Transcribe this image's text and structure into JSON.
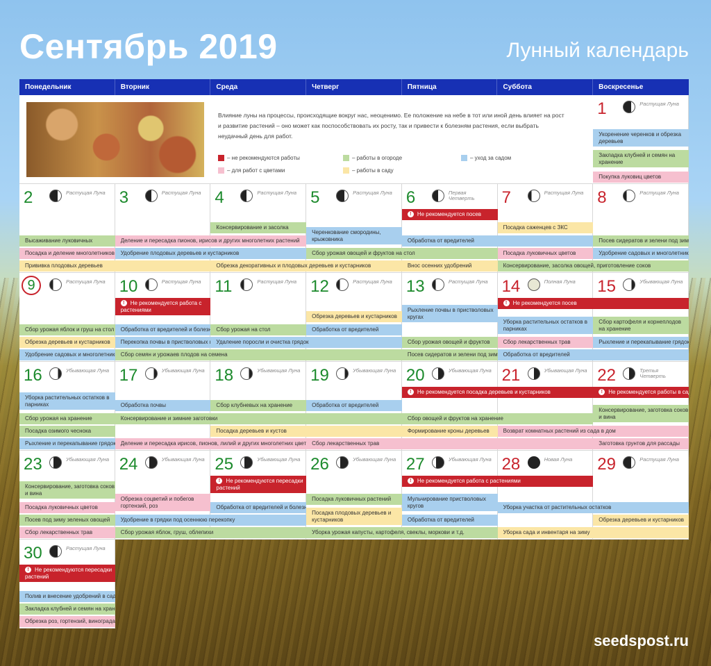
{
  "header": {
    "title": "Сентябрь 2019",
    "subtitle": "Лунный календарь",
    "site": "seedspost.ru"
  },
  "weekdays": [
    "Понедельник",
    "Вторник",
    "Среда",
    "Четверг",
    "Пятница",
    "Суббота",
    "Воскресенье"
  ],
  "intro": {
    "text": "Влияние луны на процессы, происходящие вокруг нас, неоценимо. Ее положение на небе в тот или иной день влияет на рост и развитие растений – оно может как поспособствовать их росту, так и привести к болезням растения, если выбрать неудачный день для работ.",
    "legend": [
      {
        "label": "– не рекомендуются работы",
        "color": "#c8232c"
      },
      {
        "label": "– работы в огороде",
        "color": "#bcdba0"
      },
      {
        "label": "– уход за садом",
        "color": "#a8cfee"
      },
      {
        "label": "– для работ с цветами",
        "color": "#f6c0cf"
      },
      {
        "label": "– работы в саду",
        "color": "#fbe6a6"
      }
    ]
  },
  "colors": {
    "header": "#1730b4",
    "red": "#c8232c",
    "green": "#bcdba0",
    "blue": "#a8cfee",
    "yellow": "#fbe6a6",
    "pink": "#f6c0cf"
  },
  "days": [
    {
      "n": "1",
      "phase": "Растущая Луна",
      "moon": "waxc",
      "red": true,
      "row": 0,
      "col": 6
    },
    {
      "n": "2",
      "phase": "Растущая Луна",
      "moon": "waxc",
      "row": 1,
      "col": 0
    },
    {
      "n": "3",
      "phase": "Растущая Луна",
      "moon": "fq",
      "row": 1,
      "col": 1
    },
    {
      "n": "4",
      "phase": "Растущая Луна",
      "moon": "fq",
      "row": 1,
      "col": 2
    },
    {
      "n": "5",
      "phase": "Растущая Луна",
      "moon": "waxc",
      "row": 1,
      "col": 3
    },
    {
      "n": "6",
      "phase": "Первая Четверть",
      "moon": "fq",
      "row": 1,
      "col": 4
    },
    {
      "n": "7",
      "phase": "Растущая Луна",
      "moon": "waxg",
      "red": true,
      "row": 1,
      "col": 5
    },
    {
      "n": "8",
      "phase": "Растущая Луна",
      "moon": "waxg",
      "red": true,
      "row": 1,
      "col": 6
    },
    {
      "n": "9",
      "phase": "Растущая Луна",
      "moon": "waxg",
      "circ": true,
      "row": 2,
      "col": 0
    },
    {
      "n": "10",
      "phase": "Растущая Луна",
      "moon": "waxg",
      "row": 2,
      "col": 1
    },
    {
      "n": "11",
      "phase": "Растущая Луна",
      "moon": "waxg",
      "row": 2,
      "col": 2
    },
    {
      "n": "12",
      "phase": "Растущая Луна",
      "moon": "waxg",
      "row": 2,
      "col": 3
    },
    {
      "n": "13",
      "phase": "Растущая Луна",
      "moon": "waxg",
      "row": 2,
      "col": 4
    },
    {
      "n": "14",
      "phase": "Полная Луна",
      "moon": "full",
      "red": true,
      "row": 2,
      "col": 5
    },
    {
      "n": "15",
      "phase": "Убывающая Луна",
      "moon": "wang",
      "red": true,
      "row": 2,
      "col": 6
    },
    {
      "n": "16",
      "phase": "Убывающая Луна",
      "moon": "wang",
      "row": 3,
      "col": 0
    },
    {
      "n": "17",
      "phase": "Убывающая Луна",
      "moon": "wang",
      "row": 3,
      "col": 1
    },
    {
      "n": "18",
      "phase": "Убывающая Луна",
      "moon": "wang",
      "row": 3,
      "col": 2
    },
    {
      "n": "19",
      "phase": "Убывающая Луна",
      "moon": "wang",
      "row": 3,
      "col": 3
    },
    {
      "n": "20",
      "phase": "Убывающая Луна",
      "moon": "lq",
      "row": 3,
      "col": 4
    },
    {
      "n": "21",
      "phase": "Убывающая Луна",
      "moon": "lq",
      "red": true,
      "row": 3,
      "col": 5
    },
    {
      "n": "22",
      "phase": "Третья Четверть",
      "moon": "lq",
      "red": true,
      "row": 3,
      "col": 6
    },
    {
      "n": "23",
      "phase": "Убывающая Луна",
      "moon": "wanc",
      "row": 4,
      "col": 0
    },
    {
      "n": "24",
      "phase": "Убывающая Луна",
      "moon": "wanc",
      "row": 4,
      "col": 1
    },
    {
      "n": "25",
      "phase": "Убывающая Луна",
      "moon": "wanc",
      "row": 4,
      "col": 2
    },
    {
      "n": "26",
      "phase": "Убывающая Луна",
      "moon": "wanc",
      "row": 4,
      "col": 3
    },
    {
      "n": "27",
      "phase": "Убывающая Луна",
      "moon": "wanc",
      "row": 4,
      "col": 4
    },
    {
      "n": "28",
      "phase": "Новая Луна",
      "moon": "new",
      "red": true,
      "row": 4,
      "col": 5
    },
    {
      "n": "29",
      "phase": "Растущая Луна",
      "moon": "waxc",
      "red": true,
      "row": 4,
      "col": 6
    },
    {
      "n": "30",
      "phase": "Растущая Луна",
      "moon": "waxc",
      "row": 5,
      "col": 0
    }
  ],
  "bars": [
    {
      "t": "Укоренение черенков и обрезка деревьев",
      "c": "blue",
      "r": 0,
      "s": 6,
      "w": 1,
      "y": 49,
      "tall": true
    },
    {
      "t": "Закладка клубней и семян на хранение",
      "c": "green",
      "r": 0,
      "s": 6,
      "w": 1,
      "y": 79,
      "tall": true
    },
    {
      "t": "Покупка луковиц цветов",
      "c": "pink",
      "r": 0,
      "s": 6,
      "w": 1,
      "y": 110
    },
    {
      "t": "Не рекомендуется посев",
      "c": "red",
      "r": 1,
      "s": 4,
      "w": 1,
      "y": 36
    },
    {
      "t": "Консервирование и засолка",
      "c": "green",
      "r": 1,
      "s": 2,
      "w": 1,
      "y": 55
    },
    {
      "t": "Посадка саженцев с ЗКС",
      "c": "yellow",
      "r": 1,
      "s": 5,
      "w": 1,
      "y": 55
    },
    {
      "t": "Черенкование смородины, крыжовника",
      "c": "blue",
      "r": 1,
      "s": 3,
      "w": 1,
      "y": 62,
      "tall": true
    },
    {
      "t": "Высаживание луковичных",
      "c": "green",
      "r": 1,
      "s": 0,
      "w": 1,
      "y": 74
    },
    {
      "t": "Деление и пересадка пионов, ирисов и других многолетних растений",
      "c": "pink",
      "r": 1,
      "s": 1,
      "w": 2,
      "y": 74
    },
    {
      "t": "Обработка от вредителей",
      "c": "blue",
      "r": 1,
      "s": 4,
      "w": 2,
      "y": 74
    },
    {
      "t": "Посев сидератов и зелени под зиму",
      "c": "green",
      "r": 1,
      "s": 6,
      "w": 1,
      "y": 74
    },
    {
      "t": "Посадка и деление многолетников",
      "c": "pink",
      "r": 1,
      "s": 0,
      "w": 1,
      "y": 92
    },
    {
      "t": "Удобрение плодовых деревьев и кустарников",
      "c": "blue",
      "r": 1,
      "s": 1,
      "w": 2,
      "y": 92
    },
    {
      "t": "Сбор урожая овощей и фруктов на стол",
      "c": "green",
      "r": 1,
      "s": 3,
      "w": 2,
      "y": 92
    },
    {
      "t": "Посадка луковичных цветов",
      "c": "pink",
      "r": 1,
      "s": 5,
      "w": 1,
      "y": 92
    },
    {
      "t": "Удобрение садовых и многолетников",
      "c": "blue",
      "r": 1,
      "s": 6,
      "w": 1,
      "y": 92
    },
    {
      "t": "Прививка плодовых деревьев",
      "c": "yellow",
      "r": 1,
      "s": 0,
      "w": 2,
      "y": 110
    },
    {
      "t": "Обрезка декоративных и плодовых деревьев и кустарников",
      "c": "yellow",
      "r": 1,
      "s": 2,
      "w": 2,
      "y": 110
    },
    {
      "t": "Внос осенних удобрений",
      "c": "yellow",
      "r": 1,
      "s": 4,
      "w": 1,
      "y": 110
    },
    {
      "t": "Консервирование, засолка овощей, приготовление соков",
      "c": "green",
      "r": 1,
      "s": 5,
      "w": 2,
      "y": 110
    },
    {
      "t": "Не рекомендуется работа с растениями",
      "c": "red",
      "r": 2,
      "s": 1,
      "w": 1,
      "y": 36,
      "tall": true
    },
    {
      "t": "Не рекомендуется посев",
      "c": "red",
      "r": 2,
      "s": 5,
      "w": 2,
      "y": 36
    },
    {
      "t": "Рыхление почвы в пристволовых кругах",
      "c": "blue",
      "r": 2,
      "s": 4,
      "w": 1,
      "y": 46,
      "tall": true
    },
    {
      "t": "Обрезка деревьев и кустарников",
      "c": "yellow",
      "r": 2,
      "s": 3,
      "w": 1,
      "y": 55
    },
    {
      "t": "Уборка растительных остатков в парниках",
      "c": "blue",
      "r": 2,
      "s": 5,
      "w": 1,
      "y": 63,
      "tall": true
    },
    {
      "t": "Сбор картофеля и корнеплодов на хранение",
      "c": "green",
      "r": 2,
      "s": 6,
      "w": 1,
      "y": 63,
      "tall": true
    },
    {
      "t": "Сбор урожая яблок и груш на стол",
      "c": "green",
      "r": 2,
      "s": 0,
      "w": 1,
      "y": 74
    },
    {
      "t": "Обработка от вредителей и болезней",
      "c": "blue",
      "r": 2,
      "s": 1,
      "w": 1,
      "y": 74
    },
    {
      "t": "Сбор урожая на стол",
      "c": "green",
      "r": 2,
      "s": 2,
      "w": 1,
      "y": 74
    },
    {
      "t": "Обработка от вредителей",
      "c": "blue",
      "r": 2,
      "s": 3,
      "w": 1,
      "y": 74
    },
    {
      "t": "Обрезка деревьев и кустарников",
      "c": "yellow",
      "r": 2,
      "s": 0,
      "w": 1,
      "y": 92
    },
    {
      "t": "Перекопка почвы в пристволовых кругах",
      "c": "blue",
      "r": 2,
      "s": 1,
      "w": 1,
      "y": 92
    },
    {
      "t": "Удаление поросли и очистка грядок",
      "c": "blue",
      "r": 2,
      "s": 2,
      "w": 2,
      "y": 92
    },
    {
      "t": "Сбор урожая овощей и фруктов",
      "c": "green",
      "r": 2,
      "s": 4,
      "w": 1,
      "y": 92
    },
    {
      "t": "Сбор лекарственных трав",
      "c": "pink",
      "r": 2,
      "s": 5,
      "w": 1,
      "y": 92
    },
    {
      "t": "Рыхление и перекапывание грядок",
      "c": "blue",
      "r": 2,
      "s": 6,
      "w": 1,
      "y": 92
    },
    {
      "t": "Удобрение садовых и многолетников",
      "c": "blue",
      "r": 2,
      "s": 0,
      "w": 1,
      "y": 110
    },
    {
      "t": "Сбор семян и урожаев плодов на семена",
      "c": "green",
      "r": 2,
      "s": 1,
      "w": 3,
      "y": 110
    },
    {
      "t": "Посев сидератов и зелени под зиму",
      "c": "green",
      "r": 2,
      "s": 4,
      "w": 1,
      "y": 110
    },
    {
      "t": "Обработка от вредителей",
      "c": "blue",
      "r": 2,
      "s": 5,
      "w": 2,
      "y": 110
    },
    {
      "t": "Не рекомендуется посадка деревьев и кустарников",
      "c": "red",
      "r": 3,
      "s": 4,
      "w": 2,
      "y": 36
    },
    {
      "t": "Не рекомендуется работы в саду",
      "c": "red",
      "r": 3,
      "s": 6,
      "w": 1,
      "y": 36
    },
    {
      "t": "Уборка растительных остатков в парниках",
      "c": "blue",
      "r": 3,
      "s": 0,
      "w": 1,
      "y": 44,
      "tall": true
    },
    {
      "t": "Обработка почвы",
      "c": "blue",
      "r": 3,
      "s": 1,
      "w": 1,
      "y": 55
    },
    {
      "t": "Сбор клубневых на хранение",
      "c": "green",
      "r": 3,
      "s": 2,
      "w": 1,
      "y": 55
    },
    {
      "t": "Обработка от вредителей",
      "c": "blue",
      "r": 3,
      "s": 3,
      "w": 1,
      "y": 55
    },
    {
      "t": "Консервирование, заготовка соков и вина",
      "c": "green",
      "r": 3,
      "s": 6,
      "w": 1,
      "y": 62,
      "tall": true
    },
    {
      "t": "Сбор урожая на хранение",
      "c": "green",
      "r": 3,
      "s": 0,
      "w": 1,
      "y": 74
    },
    {
      "t": "Консервирование и зимние заготовки",
      "c": "green",
      "r": 3,
      "s": 1,
      "w": 3,
      "y": 74
    },
    {
      "t": "Сбор овощей и фруктов на хранение",
      "c": "green",
      "r": 3,
      "s": 4,
      "w": 2,
      "y": 74
    },
    {
      "t": "Посадка озимого чеснока",
      "c": "green",
      "r": 3,
      "s": 0,
      "w": 1,
      "y": 92
    },
    {
      "t": "Посадка деревьев и кустов",
      "c": "yellow",
      "r": 3,
      "s": 2,
      "w": 2,
      "y": 92
    },
    {
      "t": "Формирование кроны деревьев",
      "c": "yellow",
      "r": 3,
      "s": 4,
      "w": 1,
      "y": 92
    },
    {
      "t": "Возврат комнатных растений из сада в дом",
      "c": "pink",
      "r": 3,
      "s": 5,
      "w": 2,
      "y": 92
    },
    {
      "t": "Рыхление и перекапывание грядок",
      "c": "blue",
      "r": 3,
      "s": 0,
      "w": 1,
      "y": 110
    },
    {
      "t": "Деление и пересадка ирисов, пионов, лилий и других многолетних цветов",
      "c": "pink",
      "r": 3,
      "s": 1,
      "w": 2,
      "y": 110
    },
    {
      "t": "Сбор лекарственных трав",
      "c": "pink",
      "r": 3,
      "s": 3,
      "w": 3,
      "y": 110
    },
    {
      "t": "Заготовка грунтов для рассады",
      "c": "pink",
      "r": 3,
      "s": 6,
      "w": 1,
      "y": 110
    },
    {
      "t": "Не рекомендуются пересадки растений",
      "c": "red",
      "r": 4,
      "s": 2,
      "w": 1,
      "y": 36,
      "tall": true
    },
    {
      "t": "Не рекомендуется работа с растениями",
      "c": "red",
      "r": 4,
      "s": 4,
      "w": 2,
      "y": 36
    },
    {
      "t": "Консервирование, заготовка соков и вина",
      "c": "green",
      "r": 4,
      "s": 0,
      "w": 1,
      "y": 44,
      "tall": true
    },
    {
      "t": "Обрезка соцветий и побегов гортензий, роз",
      "c": "pink",
      "r": 4,
      "s": 1,
      "w": 1,
      "y": 62,
      "tall": true
    },
    {
      "t": "Посадка луковичных растений",
      "c": "green",
      "r": 4,
      "s": 3,
      "w": 1,
      "y": 62
    },
    {
      "t": "Мульчирование пристволовых кругов",
      "c": "blue",
      "r": 4,
      "s": 4,
      "w": 1,
      "y": 62,
      "tall": true
    },
    {
      "t": "Посадка луковичных цветов",
      "c": "pink",
      "r": 4,
      "s": 0,
      "w": 1,
      "y": 74
    },
    {
      "t": "Обработка от вредителей и болезней",
      "c": "blue",
      "r": 4,
      "s": 2,
      "w": 1,
      "y": 74
    },
    {
      "t": "Уборка участка от растительных остатков",
      "c": "blue",
      "r": 4,
      "s": 5,
      "w": 2,
      "y": 74
    },
    {
      "t": "Посадка плодовых деревьев и кустарников",
      "c": "yellow",
      "r": 4,
      "s": 3,
      "w": 1,
      "y": 82,
      "tall": true
    },
    {
      "t": "Посев под зиму зеленых овощей",
      "c": "green",
      "r": 4,
      "s": 0,
      "w": 1,
      "y": 92
    },
    {
      "t": "Удобрение в грядки под осеннюю перекопку",
      "c": "blue",
      "r": 4,
      "s": 1,
      "w": 2,
      "y": 92
    },
    {
      "t": "Обработка от вредителей",
      "c": "blue",
      "r": 4,
      "s": 4,
      "w": 1,
      "y": 92
    },
    {
      "t": "Обрезка деревьев и кустарников",
      "c": "yellow",
      "r": 4,
      "s": 6,
      "w": 1,
      "y": 92
    },
    {
      "t": "Сбор лекарственных трав",
      "c": "pink",
      "r": 4,
      "s": 0,
      "w": 1,
      "y": 110
    },
    {
      "t": "Сбор урожая яблок, груш, облепихи",
      "c": "green",
      "r": 4,
      "s": 1,
      "w": 2,
      "y": 110
    },
    {
      "t": "Уборка урожая капусты, картофеля, свеклы, моркови и т.д.",
      "c": "green",
      "r": 4,
      "s": 3,
      "w": 2,
      "y": 110
    },
    {
      "t": "Уборка сада и инвентаря на зиму",
      "c": "yellow",
      "r": 4,
      "s": 5,
      "w": 2,
      "y": 110
    },
    {
      "t": "Не рекомендуются пересадки растений",
      "c": "red",
      "r": 5,
      "s": 0,
      "w": 1,
      "y": 36,
      "tall": true
    },
    {
      "t": "Полив и внесение удобрений в саду",
      "c": "blue",
      "r": 5,
      "s": 0,
      "w": 1,
      "y": 74
    },
    {
      "t": "Закладка клубней и семян на хранение",
      "c": "green",
      "r": 5,
      "s": 0,
      "w": 1,
      "y": 92
    },
    {
      "t": "Обрезка роз, гортензий, винограда",
      "c": "pink",
      "r": 5,
      "s": 0,
      "w": 1,
      "y": 110
    }
  ]
}
